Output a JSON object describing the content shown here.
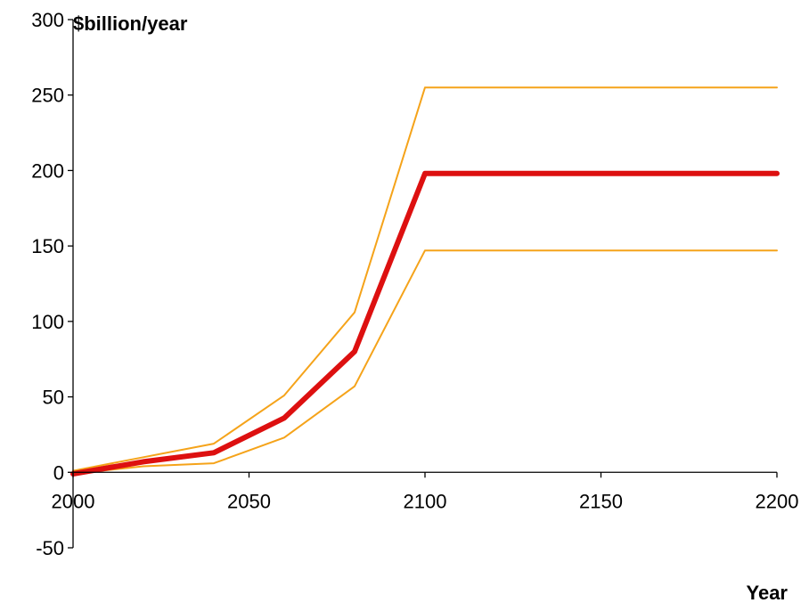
{
  "chart_data": {
    "type": "line",
    "title": "",
    "xlabel": "Year",
    "ylabel": "$billion/year",
    "xlim": [
      2000,
      2200
    ],
    "ylim": [
      -50,
      300
    ],
    "x_ticks": [
      2000,
      2050,
      2100,
      2150,
      2200
    ],
    "x_tick_labels": [
      "2000",
      "2050",
      "2100",
      "2150",
      "2200"
    ],
    "y_ticks": [
      -50,
      0,
      50,
      100,
      150,
      200,
      250,
      300
    ],
    "y_tick_labels": [
      "-50",
      "0",
      "50",
      "100",
      "150",
      "200",
      "250",
      "300"
    ],
    "grid": false,
    "legend": "none",
    "series": [
      {
        "color": "#f5a31a",
        "x": [
          2000,
          2020,
          2040,
          2060,
          2080,
          2100,
          2200
        ],
        "y": [
          1,
          10,
          19,
          51,
          106,
          255,
          255
        ]
      },
      {
        "color": "#dd1010",
        "x": [
          2000,
          2020,
          2040,
          2060,
          2080,
          2100,
          2200
        ],
        "y": [
          -1,
          7,
          13,
          36,
          80,
          198,
          198
        ]
      },
      {
        "color": "#f5a31a",
        "x": [
          2000,
          2020,
          2040,
          2060,
          2080,
          2100,
          2200
        ],
        "y": [
          -1,
          4,
          6,
          23,
          57,
          147,
          147
        ]
      }
    ]
  }
}
